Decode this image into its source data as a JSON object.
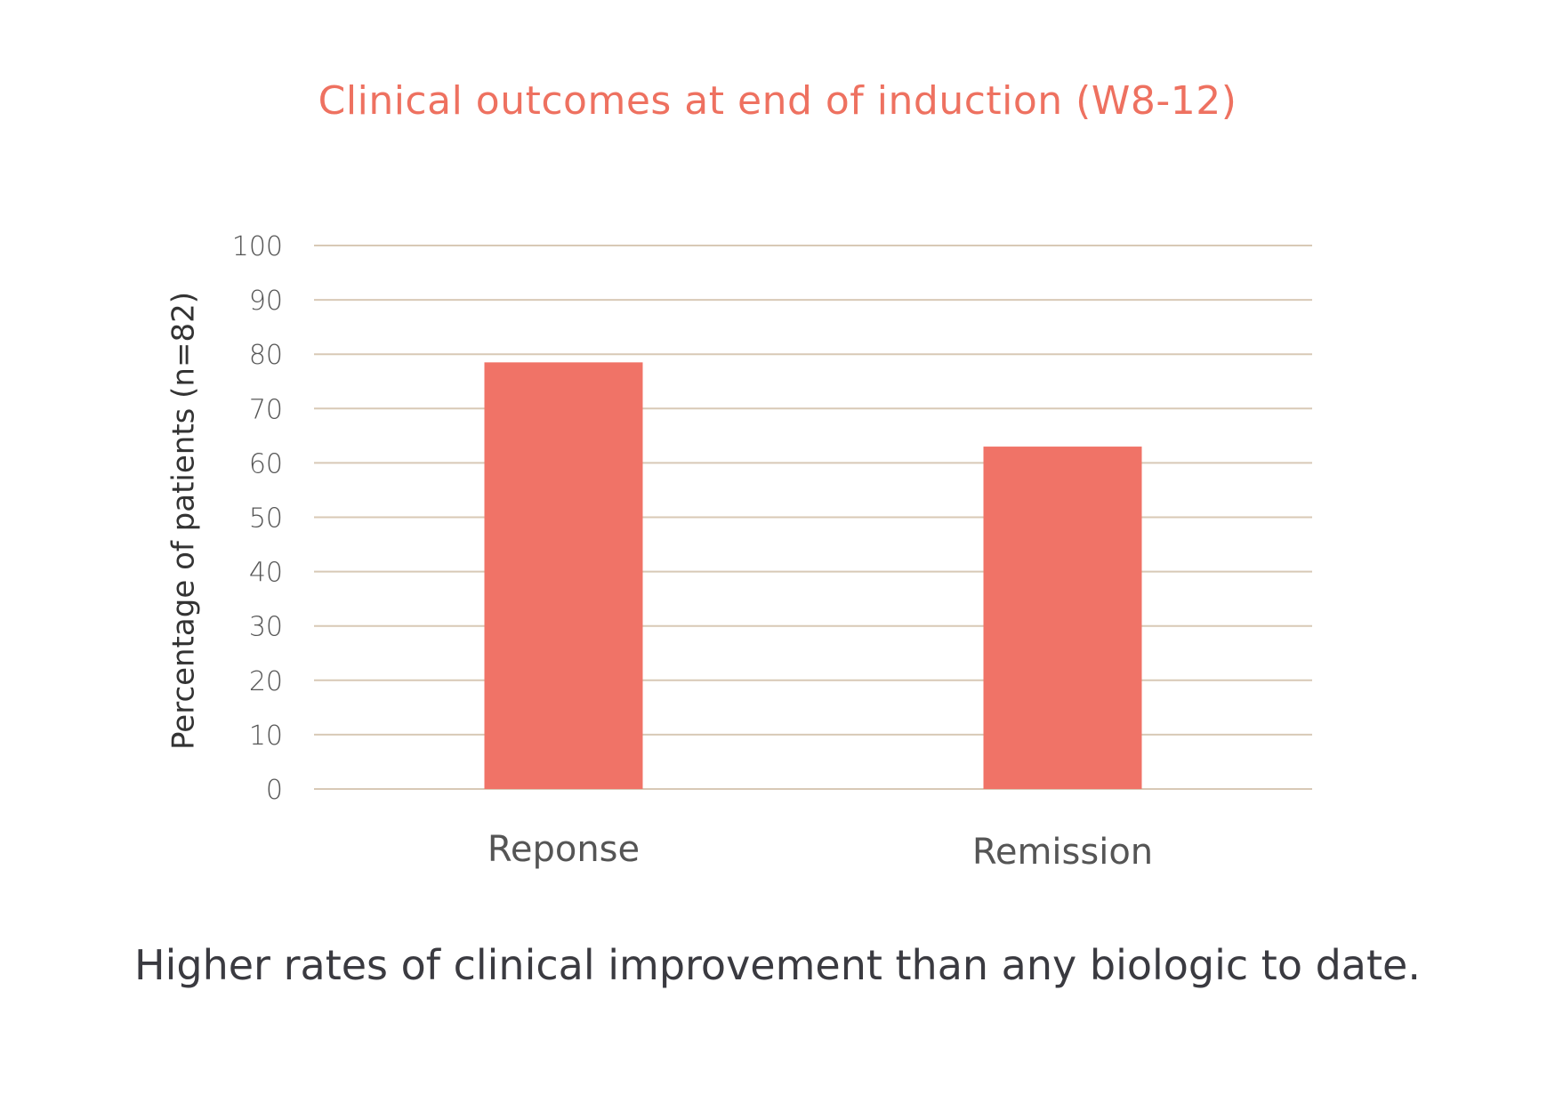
{
  "chart_data": {
    "type": "bar",
    "title": "Clinical outcomes at end of induction (W8-12)",
    "ylabel": "Percentage of patients (n=82)",
    "xlabel": "",
    "categories": [
      "Reponse",
      "Remission"
    ],
    "values": [
      78.5,
      63
    ],
    "ylim": [
      0,
      100
    ],
    "yticks": [
      "0",
      "10",
      "20",
      "30",
      "40",
      "50",
      "60",
      "70",
      "80",
      "90",
      "100"
    ],
    "grid": true,
    "legend": "none",
    "bar_color": "#f07367",
    "grid_color": "#d8c9b6"
  },
  "caption": "Higher rates of clinical improvement than any biologic to date.",
  "colors": {
    "title": "#ee7160",
    "text": "#3a3a40"
  }
}
